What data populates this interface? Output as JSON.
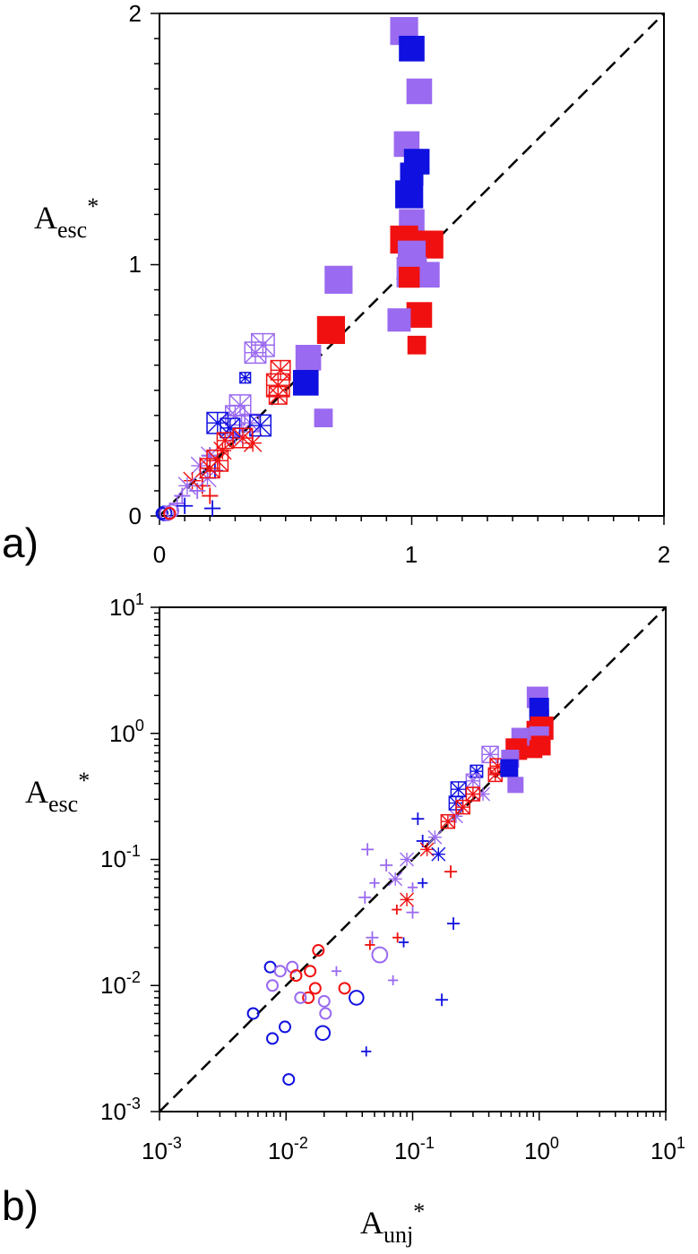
{
  "colors": {
    "blue": "#1010e0",
    "purple": "#9a6af0",
    "red": "#f01010",
    "black": "#000000"
  },
  "chart_data": [
    {
      "panel": "a)",
      "type": "scatter",
      "xscale": "linear",
      "yscale": "linear",
      "xlim": [
        0,
        2
      ],
      "ylim": [
        0,
        2
      ],
      "xticks": [
        "0",
        "1",
        "2"
      ],
      "yticks": [
        "0",
        "1",
        "2"
      ],
      "ylabel_main": "A",
      "ylabel_sub": "esc",
      "ylabel_sup": "*",
      "reference_line": {
        "style": "dashed",
        "from": [
          0,
          0
        ],
        "to": [
          2,
          2
        ]
      },
      "points": [
        {
          "x": 0.97,
          "y": 1.93,
          "c": "purple",
          "m": "filled-square",
          "s": 1.2
        },
        {
          "x": 1.0,
          "y": 1.86,
          "c": "blue",
          "m": "filled-square",
          "s": 1.1
        },
        {
          "x": 1.03,
          "y": 1.69,
          "c": "purple",
          "m": "filled-square",
          "s": 1.1
        },
        {
          "x": 0.98,
          "y": 1.48,
          "c": "purple",
          "m": "filled-square",
          "s": 1.1
        },
        {
          "x": 1.02,
          "y": 1.41,
          "c": "blue",
          "m": "filled-square",
          "s": 1.1
        },
        {
          "x": 1.0,
          "y": 1.36,
          "c": "blue",
          "m": "filled-square",
          "s": 1.0
        },
        {
          "x": 0.99,
          "y": 1.28,
          "c": "blue",
          "m": "filled-square",
          "s": 1.2
        },
        {
          "x": 1.0,
          "y": 1.17,
          "c": "purple",
          "m": "filled-square",
          "s": 1.1
        },
        {
          "x": 0.97,
          "y": 1.1,
          "c": "red",
          "m": "filled-square",
          "s": 1.2
        },
        {
          "x": 1.07,
          "y": 1.08,
          "c": "red",
          "m": "filled-square",
          "s": 1.2
        },
        {
          "x": 1.0,
          "y": 1.04,
          "c": "purple",
          "m": "filled-square",
          "s": 1.2
        },
        {
          "x": 1.0,
          "y": 0.97,
          "c": "purple",
          "m": "filled-square",
          "s": 1.3
        },
        {
          "x": 1.06,
          "y": 0.96,
          "c": "purple",
          "m": "filled-square",
          "s": 1.1
        },
        {
          "x": 0.99,
          "y": 0.95,
          "c": "red",
          "m": "filled-square",
          "s": 0.9
        },
        {
          "x": 1.03,
          "y": 0.8,
          "c": "red",
          "m": "filled-square",
          "s": 1.1
        },
        {
          "x": 0.95,
          "y": 0.78,
          "c": "purple",
          "m": "filled-square",
          "s": 1.0
        },
        {
          "x": 1.02,
          "y": 0.68,
          "c": "red",
          "m": "filled-square",
          "s": 0.8
        },
        {
          "x": 0.71,
          "y": 0.94,
          "c": "purple",
          "m": "filled-square",
          "s": 1.2
        },
        {
          "x": 0.68,
          "y": 0.74,
          "c": "red",
          "m": "filled-square",
          "s": 1.2
        },
        {
          "x": 0.59,
          "y": 0.63,
          "c": "purple",
          "m": "filled-square",
          "s": 1.1
        },
        {
          "x": 0.58,
          "y": 0.53,
          "c": "blue",
          "m": "filled-square",
          "s": 1.1
        },
        {
          "x": 0.65,
          "y": 0.39,
          "c": "purple",
          "m": "filled-square",
          "s": 0.8
        },
        {
          "x": 0.41,
          "y": 0.68,
          "c": "purple",
          "m": "boxed-star",
          "s": 1.3
        },
        {
          "x": 0.38,
          "y": 0.65,
          "c": "purple",
          "m": "boxed-star",
          "s": 1.2
        },
        {
          "x": 0.48,
          "y": 0.58,
          "c": "red",
          "m": "boxed-star",
          "s": 1.1
        },
        {
          "x": 0.47,
          "y": 0.52,
          "c": "red",
          "m": "boxed-star",
          "s": 1.3
        },
        {
          "x": 0.47,
          "y": 0.48,
          "c": "red",
          "m": "boxed-star",
          "s": 1.0
        },
        {
          "x": 0.34,
          "y": 0.55,
          "c": "blue",
          "m": "boxed-star",
          "s": 0.6
        },
        {
          "x": 0.32,
          "y": 0.44,
          "c": "purple",
          "m": "boxed-star",
          "s": 1.2
        },
        {
          "x": 0.3,
          "y": 0.4,
          "c": "purple",
          "m": "boxed-star",
          "s": 1.1
        },
        {
          "x": 0.23,
          "y": 0.37,
          "c": "blue",
          "m": "boxed-star",
          "s": 1.2
        },
        {
          "x": 0.28,
          "y": 0.35,
          "c": "blue",
          "m": "boxed-star",
          "s": 1.1
        },
        {
          "x": 0.36,
          "y": 0.37,
          "c": "purple",
          "m": "boxed-star",
          "s": 1.0
        },
        {
          "x": 0.4,
          "y": 0.36,
          "c": "blue",
          "m": "boxed-star",
          "s": 1.2
        },
        {
          "x": 0.33,
          "y": 0.31,
          "c": "red",
          "m": "boxed-star",
          "s": 1.1
        },
        {
          "x": 0.26,
          "y": 0.3,
          "c": "red",
          "m": "boxed-star",
          "s": 0.9
        },
        {
          "x": 0.23,
          "y": 0.22,
          "c": "red",
          "m": "boxed-star",
          "s": 1.2
        },
        {
          "x": 0.2,
          "y": 0.19,
          "c": "red",
          "m": "boxed-star",
          "s": 1.1
        },
        {
          "x": 0.37,
          "y": 0.29,
          "c": "red",
          "m": "star",
          "s": 1.0
        },
        {
          "x": 0.3,
          "y": 0.32,
          "c": "purple",
          "m": "star",
          "s": 1.0
        },
        {
          "x": 0.25,
          "y": 0.26,
          "c": "red",
          "m": "star",
          "s": 1.0
        },
        {
          "x": 0.2,
          "y": 0.24,
          "c": "purple",
          "m": "star",
          "s": 1.0
        },
        {
          "x": 0.16,
          "y": 0.2,
          "c": "purple",
          "m": "star",
          "s": 1.0
        },
        {
          "x": 0.13,
          "y": 0.14,
          "c": "red",
          "m": "star",
          "s": 1.0
        },
        {
          "x": 0.11,
          "y": 0.12,
          "c": "purple",
          "m": "star",
          "s": 1.0
        },
        {
          "x": 0.19,
          "y": 0.15,
          "c": "purple",
          "m": "star",
          "s": 1.0
        },
        {
          "x": 0.2,
          "y": 0.24,
          "c": "blue",
          "m": "plus",
          "s": 1.0
        },
        {
          "x": 0.22,
          "y": 0.18,
          "c": "blue",
          "m": "plus",
          "s": 1.0
        },
        {
          "x": 0.17,
          "y": 0.12,
          "c": "red",
          "m": "plus",
          "s": 1.0
        },
        {
          "x": 0.2,
          "y": 0.08,
          "c": "red",
          "m": "plus",
          "s": 1.0
        },
        {
          "x": 0.15,
          "y": 0.1,
          "c": "purple",
          "m": "plus",
          "s": 1.0
        },
        {
          "x": 0.09,
          "y": 0.08,
          "c": "purple",
          "m": "plus",
          "s": 1.0
        },
        {
          "x": 0.07,
          "y": 0.05,
          "c": "purple",
          "m": "plus",
          "s": 1.0
        },
        {
          "x": 0.21,
          "y": 0.03,
          "c": "blue",
          "m": "plus",
          "s": 1.0
        },
        {
          "x": 0.1,
          "y": 0.04,
          "c": "blue",
          "m": "plus",
          "s": 1.0
        },
        {
          "x": 0.02,
          "y": 0.01,
          "c": "blue",
          "m": "circle",
          "s": 1.0
        },
        {
          "x": 0.03,
          "y": 0.01,
          "c": "purple",
          "m": "circle",
          "s": 1.0
        },
        {
          "x": 0.01,
          "y": 0.01,
          "c": "blue",
          "m": "circle",
          "s": 0.8
        },
        {
          "x": 0.05,
          "y": 0.02,
          "c": "purple",
          "m": "circle",
          "s": 0.9
        },
        {
          "x": 0.04,
          "y": 0.01,
          "c": "red",
          "m": "circle",
          "s": 0.8
        }
      ]
    },
    {
      "panel": "b)",
      "type": "scatter",
      "xscale": "log",
      "yscale": "log",
      "xlim": [
        0.001,
        10
      ],
      "ylim": [
        0.001,
        10
      ],
      "xticks": [
        {
          "base": "10",
          "exp": "-3"
        },
        {
          "base": "10",
          "exp": "-2"
        },
        {
          "base": "10",
          "exp": "-1"
        },
        {
          "base": "10",
          "exp": "0"
        },
        {
          "base": "10",
          "exp": "1"
        }
      ],
      "yticks": [
        {
          "base": "10",
          "exp": "-3"
        },
        {
          "base": "10",
          "exp": "-2"
        },
        {
          "base": "10",
          "exp": "-1"
        },
        {
          "base": "10",
          "exp": "0"
        },
        {
          "base": "10",
          "exp": "1"
        }
      ],
      "xlabel_main": "A",
      "xlabel_sub": "unj",
      "xlabel_sup": "*",
      "ylabel_main": "A",
      "ylabel_sub": "esc",
      "ylabel_sup": "*",
      "reference_line": {
        "style": "dashed",
        "from": [
          0.001,
          0.001
        ],
        "to": [
          10,
          10
        ]
      },
      "points": [
        {
          "x": 0.97,
          "y": 1.93,
          "c": "purple",
          "m": "filled-square",
          "s": 1.2
        },
        {
          "x": 1.0,
          "y": 1.6,
          "c": "blue",
          "m": "filled-square",
          "s": 1.1
        },
        {
          "x": 1.0,
          "y": 1.3,
          "c": "blue",
          "m": "filled-square",
          "s": 1.1
        },
        {
          "x": 1.05,
          "y": 1.1,
          "c": "red",
          "m": "filled-square",
          "s": 1.3
        },
        {
          "x": 0.95,
          "y": 1.05,
          "c": "red",
          "m": "filled-square",
          "s": 1.1
        },
        {
          "x": 1.0,
          "y": 0.95,
          "c": "purple",
          "m": "filled-square",
          "s": 1.1
        },
        {
          "x": 1.03,
          "y": 0.8,
          "c": "red",
          "m": "filled-square",
          "s": 1.1
        },
        {
          "x": 0.9,
          "y": 0.75,
          "c": "red",
          "m": "filled-square",
          "s": 1.0
        },
        {
          "x": 0.71,
          "y": 0.94,
          "c": "purple",
          "m": "filled-square",
          "s": 1.0
        },
        {
          "x": 0.66,
          "y": 0.75,
          "c": "red",
          "m": "filled-square",
          "s": 1.2
        },
        {
          "x": 0.59,
          "y": 0.63,
          "c": "purple",
          "m": "filled-square",
          "s": 1.0
        },
        {
          "x": 0.58,
          "y": 0.53,
          "c": "blue",
          "m": "filled-square",
          "s": 1.0
        },
        {
          "x": 0.65,
          "y": 0.39,
          "c": "purple",
          "m": "filled-square",
          "s": 0.9
        },
        {
          "x": 0.41,
          "y": 0.68,
          "c": "purple",
          "m": "boxed-star",
          "s": 1.2
        },
        {
          "x": 0.47,
          "y": 0.55,
          "c": "red",
          "m": "boxed-star",
          "s": 1.1
        },
        {
          "x": 0.45,
          "y": 0.47,
          "c": "red",
          "m": "boxed-star",
          "s": 1.0
        },
        {
          "x": 0.32,
          "y": 0.5,
          "c": "blue",
          "m": "boxed-star",
          "s": 0.9
        },
        {
          "x": 0.3,
          "y": 0.42,
          "c": "purple",
          "m": "boxed-star",
          "s": 1.0
        },
        {
          "x": 0.23,
          "y": 0.36,
          "c": "blue",
          "m": "boxed-star",
          "s": 1.1
        },
        {
          "x": 0.3,
          "y": 0.33,
          "c": "red",
          "m": "boxed-star",
          "s": 1.0
        },
        {
          "x": 0.22,
          "y": 0.28,
          "c": "blue",
          "m": "boxed-star",
          "s": 1.0
        },
        {
          "x": 0.25,
          "y": 0.26,
          "c": "red",
          "m": "boxed-star",
          "s": 1.0
        },
        {
          "x": 0.19,
          "y": 0.2,
          "c": "red",
          "m": "boxed-star",
          "s": 1.0
        },
        {
          "x": 0.36,
          "y": 0.33,
          "c": "purple",
          "m": "star",
          "s": 1.0
        },
        {
          "x": 0.22,
          "y": 0.22,
          "c": "purple",
          "m": "star",
          "s": 1.0
        },
        {
          "x": 0.15,
          "y": 0.15,
          "c": "purple",
          "m": "star",
          "s": 1.0
        },
        {
          "x": 0.13,
          "y": 0.12,
          "c": "red",
          "m": "star",
          "s": 1.0
        },
        {
          "x": 0.16,
          "y": 0.11,
          "c": "blue",
          "m": "star",
          "s": 1.0
        },
        {
          "x": 0.09,
          "y": 0.1,
          "c": "purple",
          "m": "star",
          "s": 1.0
        },
        {
          "x": 0.09,
          "y": 0.048,
          "c": "red",
          "m": "star",
          "s": 1.0
        },
        {
          "x": 0.073,
          "y": 0.07,
          "c": "purple",
          "m": "star",
          "s": 1.0
        },
        {
          "x": 0.12,
          "y": 0.14,
          "c": "blue",
          "m": "plus",
          "s": 1.0
        },
        {
          "x": 0.11,
          "y": 0.21,
          "c": "blue",
          "m": "plus",
          "s": 1.0
        },
        {
          "x": 0.044,
          "y": 0.12,
          "c": "purple",
          "m": "plus",
          "s": 1.0
        },
        {
          "x": 0.062,
          "y": 0.09,
          "c": "purple",
          "m": "plus",
          "s": 1.0
        },
        {
          "x": 0.042,
          "y": 0.05,
          "c": "purple",
          "m": "plus",
          "s": 1.0
        },
        {
          "x": 0.05,
          "y": 0.065,
          "c": "purple",
          "m": "plus",
          "s": 0.8
        },
        {
          "x": 0.2,
          "y": 0.08,
          "c": "red",
          "m": "plus",
          "s": 1.0
        },
        {
          "x": 0.075,
          "y": 0.04,
          "c": "red",
          "m": "plus",
          "s": 0.8
        },
        {
          "x": 0.1,
          "y": 0.06,
          "c": "purple",
          "m": "plus",
          "s": 0.8
        },
        {
          "x": 0.1,
          "y": 0.038,
          "c": "purple",
          "m": "plus",
          "s": 1.0
        },
        {
          "x": 0.12,
          "y": 0.065,
          "c": "blue",
          "m": "plus",
          "s": 0.8
        },
        {
          "x": 0.085,
          "y": 0.022,
          "c": "blue",
          "m": "plus",
          "s": 0.8
        },
        {
          "x": 0.076,
          "y": 0.024,
          "c": "red",
          "m": "plus",
          "s": 0.8
        },
        {
          "x": 0.048,
          "y": 0.024,
          "c": "purple",
          "m": "plus",
          "s": 1.0
        },
        {
          "x": 0.046,
          "y": 0.021,
          "c": "red",
          "m": "plus",
          "s": 0.8
        },
        {
          "x": 0.21,
          "y": 0.031,
          "c": "blue",
          "m": "plus",
          "s": 1.0
        },
        {
          "x": 0.025,
          "y": 0.013,
          "c": "purple",
          "m": "plus",
          "s": 0.8
        },
        {
          "x": 0.07,
          "y": 0.011,
          "c": "purple",
          "m": "plus",
          "s": 0.8
        },
        {
          "x": 0.17,
          "y": 0.0077,
          "c": "blue",
          "m": "plus",
          "s": 1.0
        },
        {
          "x": 0.043,
          "y": 0.003,
          "c": "blue",
          "m": "plus",
          "s": 0.8
        },
        {
          "x": 0.0075,
          "y": 0.014,
          "c": "blue",
          "m": "circle",
          "s": 1.0
        },
        {
          "x": 0.009,
          "y": 0.013,
          "c": "purple",
          "m": "circle",
          "s": 1.0
        },
        {
          "x": 0.0078,
          "y": 0.01,
          "c": "purple",
          "m": "circle",
          "s": 1.0
        },
        {
          "x": 0.0112,
          "y": 0.014,
          "c": "purple",
          "m": "circle",
          "s": 1.0
        },
        {
          "x": 0.012,
          "y": 0.012,
          "c": "red",
          "m": "circle",
          "s": 1.0
        },
        {
          "x": 0.0155,
          "y": 0.013,
          "c": "red",
          "m": "circle",
          "s": 1.0
        },
        {
          "x": 0.018,
          "y": 0.019,
          "c": "red",
          "m": "circle",
          "s": 1.0
        },
        {
          "x": 0.017,
          "y": 0.0095,
          "c": "red",
          "m": "circle",
          "s": 1.0
        },
        {
          "x": 0.015,
          "y": 0.008,
          "c": "red",
          "m": "circle",
          "s": 1.0
        },
        {
          "x": 0.013,
          "y": 0.008,
          "c": "purple",
          "m": "circle",
          "s": 1.0
        },
        {
          "x": 0.02,
          "y": 0.0075,
          "c": "purple",
          "m": "circle",
          "s": 1.0
        },
        {
          "x": 0.0205,
          "y": 0.006,
          "c": "purple",
          "m": "circle",
          "s": 1.0
        },
        {
          "x": 0.029,
          "y": 0.0095,
          "c": "red",
          "m": "circle",
          "s": 1.0
        },
        {
          "x": 0.036,
          "y": 0.008,
          "c": "blue",
          "m": "circle",
          "s": 1.3
        },
        {
          "x": 0.055,
          "y": 0.0175,
          "c": "purple",
          "m": "circle",
          "s": 1.4
        },
        {
          "x": 0.0195,
          "y": 0.0042,
          "c": "blue",
          "m": "circle",
          "s": 1.3
        },
        {
          "x": 0.0055,
          "y": 0.006,
          "c": "blue",
          "m": "circle",
          "s": 1.0
        },
        {
          "x": 0.0098,
          "y": 0.0047,
          "c": "blue",
          "m": "circle",
          "s": 1.0
        },
        {
          "x": 0.0078,
          "y": 0.0038,
          "c": "blue",
          "m": "circle",
          "s": 1.0
        },
        {
          "x": 0.0105,
          "y": 0.0018,
          "c": "blue",
          "m": "circle",
          "s": 1.0
        }
      ]
    }
  ]
}
